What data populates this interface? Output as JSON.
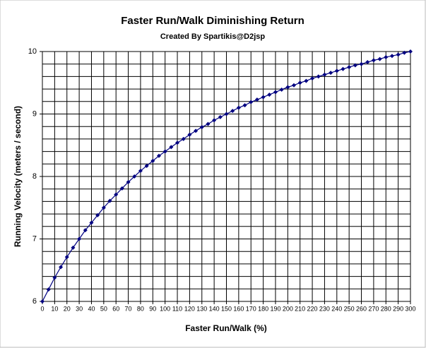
{
  "chart_data": {
    "type": "line",
    "title": "Faster Run/Walk Diminishing Return",
    "subtitle": "Created By Spartikis@D2jsp",
    "x_label": "Faster Run/Walk (%)",
    "y_label": "Running Velocity (meters / second)",
    "x": [
      0,
      5,
      10,
      15,
      20,
      25,
      30,
      35,
      40,
      45,
      50,
      55,
      60,
      65,
      70,
      75,
      80,
      85,
      90,
      95,
      100,
      105,
      110,
      115,
      120,
      125,
      130,
      135,
      140,
      145,
      150,
      155,
      160,
      165,
      170,
      175,
      180,
      185,
      190,
      195,
      200,
      205,
      210,
      215,
      220,
      225,
      230,
      235,
      240,
      245,
      250,
      255,
      260,
      265,
      270,
      275,
      280,
      285,
      290,
      295,
      300
    ],
    "series": [
      {
        "color": "#000080",
        "values": [
          6,
          6.19,
          6.38,
          6.55,
          6.71,
          6.86,
          7,
          7.14,
          7.26,
          7.38,
          7.5,
          7.61,
          7.71,
          7.81,
          7.91,
          8,
          8.09,
          8.17,
          8.25,
          8.33,
          8.4,
          8.47,
          8.54,
          8.6,
          8.67,
          8.73,
          8.79,
          8.84,
          8.9,
          8.95,
          9,
          9.05,
          9.1,
          9.14,
          9.19,
          9.23,
          9.27,
          9.31,
          9.35,
          9.39,
          9.43,
          9.46,
          9.5,
          9.53,
          9.57,
          9.6,
          9.63,
          9.66,
          9.69,
          9.72,
          9.75,
          9.78,
          9.8,
          9.83,
          9.86,
          9.88,
          9.91,
          9.93,
          9.95,
          9.98,
          10
        ]
      }
    ],
    "xlim": [
      0,
      300
    ],
    "xticks": [
      0,
      10,
      20,
      30,
      40,
      50,
      60,
      70,
      80,
      90,
      100,
      110,
      120,
      130,
      140,
      150,
      160,
      170,
      180,
      190,
      200,
      210,
      220,
      230,
      240,
      250,
      260,
      270,
      280,
      290,
      300
    ],
    "ylim": [
      6,
      10
    ],
    "yticks": [
      6,
      7,
      8,
      9,
      10
    ],
    "yminorticks": [
      6.2,
      6.4,
      6.6,
      6.8,
      7.2,
      7.4,
      7.6,
      7.8,
      8.2,
      8.4,
      8.6,
      8.8,
      9.2,
      9.4,
      9.6,
      9.8
    ],
    "grid": true
  }
}
